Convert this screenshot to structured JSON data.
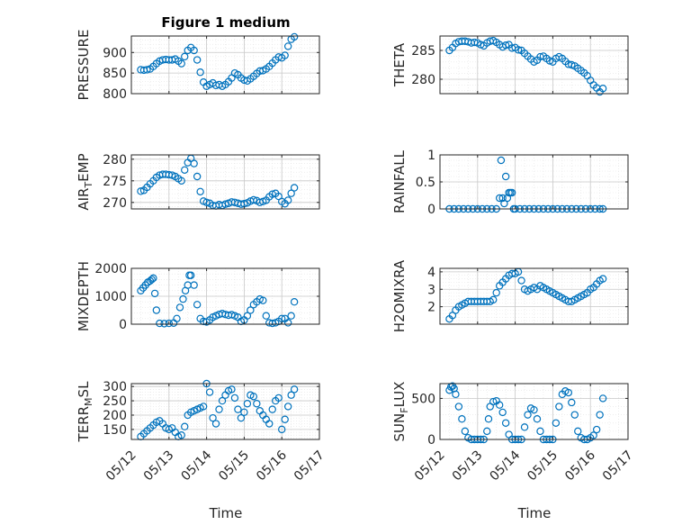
{
  "figure": {
    "title": "Figure 1 medium",
    "xlabel": "Time"
  },
  "colors": {
    "marker": "#0072BD",
    "axis": "#262626",
    "grid": "#c8c8c8",
    "minor_grid": "#e3e3e3"
  },
  "x_axis": {
    "ticks": [
      "05/12",
      "05/13",
      "05/14",
      "05/15",
      "05/16",
      "05/17"
    ],
    "range": [
      "05/12 00:00",
      "05/17 00:00"
    ]
  },
  "chart_data": [
    {
      "type": "scatter",
      "id": "pressure",
      "ylabel": {
        "main": "PRESSURE",
        "sub": ""
      },
      "ylim": [
        800,
        940
      ],
      "yticks": [
        800,
        850,
        900
      ],
      "ytick_labels": [
        "800",
        "850",
        "900"
      ],
      "grid": true,
      "x": [
        "05/12 06:00",
        "05/12 08:00",
        "05/12 10:00",
        "05/12 12:00",
        "05/12 14:00",
        "05/12 16:00",
        "05/12 18:00",
        "05/12 20:00",
        "05/12 22:00",
        "05/13 00:00",
        "05/13 02:00",
        "05/13 04:00",
        "05/13 06:00",
        "05/13 08:00",
        "05/13 10:00",
        "05/13 12:00",
        "05/13 14:00",
        "05/13 16:00",
        "05/13 18:00",
        "05/13 20:00",
        "05/13 22:00",
        "05/14 00:00",
        "05/14 02:00",
        "05/14 04:00",
        "05/14 06:00",
        "05/14 08:00",
        "05/14 10:00",
        "05/14 12:00",
        "05/14 14:00",
        "05/14 16:00",
        "05/14 18:00",
        "05/14 20:00",
        "05/14 22:00",
        "05/15 00:00",
        "05/15 02:00",
        "05/15 04:00",
        "05/15 06:00",
        "05/15 08:00",
        "05/15 10:00",
        "05/15 12:00",
        "05/15 14:00",
        "05/15 16:00",
        "05/15 18:00",
        "05/15 20:00",
        "05/15 22:00",
        "05/16 00:00",
        "05/16 02:00",
        "05/16 04:00",
        "05/16 06:00",
        "05/16 08:00"
      ],
      "y": [
        858,
        857,
        858,
        860,
        866,
        873,
        879,
        882,
        883,
        882,
        882,
        884,
        879,
        873,
        890,
        905,
        912,
        905,
        882,
        852,
        828,
        818,
        822,
        826,
        820,
        822,
        818,
        822,
        829,
        838,
        850,
        846,
        838,
        833,
        831,
        836,
        842,
        849,
        855,
        856,
        860,
        866,
        874,
        882,
        889,
        887,
        893,
        915,
        932,
        938
      ]
    },
    {
      "type": "scatter",
      "id": "theta",
      "ylabel": {
        "main": "THETA",
        "sub": ""
      },
      "ylim": [
        277.5,
        287.5
      ],
      "yticks": [
        280,
        285
      ],
      "ytick_labels": [
        "280",
        "285"
      ],
      "grid": true,
      "x": [
        "05/12 06:00",
        "05/12 08:00",
        "05/12 10:00",
        "05/12 12:00",
        "05/12 14:00",
        "05/12 16:00",
        "05/12 18:00",
        "05/12 20:00",
        "05/12 22:00",
        "05/13 00:00",
        "05/13 02:00",
        "05/13 04:00",
        "05/13 06:00",
        "05/13 08:00",
        "05/13 10:00",
        "05/13 12:00",
        "05/13 14:00",
        "05/13 16:00",
        "05/13 18:00",
        "05/13 20:00",
        "05/13 22:00",
        "05/14 00:00",
        "05/14 02:00",
        "05/14 04:00",
        "05/14 06:00",
        "05/14 08:00",
        "05/14 10:00",
        "05/14 12:00",
        "05/14 14:00",
        "05/14 16:00",
        "05/14 18:00",
        "05/14 20:00",
        "05/14 22:00",
        "05/15 00:00",
        "05/15 02:00",
        "05/15 04:00",
        "05/15 06:00",
        "05/15 08:00",
        "05/15 10:00",
        "05/15 12:00",
        "05/15 14:00",
        "05/15 16:00",
        "05/15 18:00",
        "05/15 20:00",
        "05/15 22:00",
        "05/16 00:00",
        "05/16 02:00",
        "05/16 04:00",
        "05/16 06:00",
        "05/16 08:00"
      ],
      "y": [
        285.0,
        285.5,
        286.2,
        286.5,
        286.6,
        286.6,
        286.5,
        286.3,
        286.4,
        286.3,
        286.0,
        285.8,
        286.3,
        286.6,
        286.7,
        286.4,
        286.0,
        285.6,
        285.9,
        286.0,
        285.4,
        285.5,
        285.1,
        285.0,
        284.5,
        284.0,
        283.5,
        283.0,
        283.3,
        283.9,
        284.0,
        283.6,
        283.2,
        283.0,
        283.6,
        283.9,
        283.6,
        283.1,
        282.6,
        282.5,
        282.3,
        281.9,
        281.5,
        281.1,
        280.6,
        279.8,
        279.0,
        278.5,
        277.8,
        278.4
      ]
    },
    {
      "type": "scatter",
      "id": "air_temp",
      "ylabel": {
        "main": "AIR",
        "sub": "T",
        "tail": "EMP"
      },
      "ylim": [
        268.5,
        281
      ],
      "yticks": [
        270,
        275,
        280
      ],
      "ytick_labels": [
        "270",
        "275",
        "280"
      ],
      "grid": true,
      "x": [
        "05/12 06:00",
        "05/12 08:00",
        "05/12 10:00",
        "05/12 12:00",
        "05/12 14:00",
        "05/12 16:00",
        "05/12 18:00",
        "05/12 20:00",
        "05/12 22:00",
        "05/13 00:00",
        "05/13 02:00",
        "05/13 04:00",
        "05/13 06:00",
        "05/13 08:00",
        "05/13 10:00",
        "05/13 12:00",
        "05/13 14:00",
        "05/13 16:00",
        "05/13 18:00",
        "05/13 20:00",
        "05/13 22:00",
        "05/14 00:00",
        "05/14 02:00",
        "05/14 04:00",
        "05/14 06:00",
        "05/14 08:00",
        "05/14 10:00",
        "05/14 12:00",
        "05/14 14:00",
        "05/14 16:00",
        "05/14 18:00",
        "05/14 20:00",
        "05/14 22:00",
        "05/15 00:00",
        "05/15 02:00",
        "05/15 04:00",
        "05/15 06:00",
        "05/15 08:00",
        "05/15 10:00",
        "05/15 12:00",
        "05/15 14:00",
        "05/15 16:00",
        "05/15 18:00",
        "05/15 20:00",
        "05/15 22:00",
        "05/16 00:00",
        "05/16 02:00",
        "05/16 04:00",
        "05/16 06:00",
        "05/16 08:00"
      ],
      "y": [
        272.6,
        272.8,
        273.5,
        274.3,
        275.0,
        275.8,
        276.3,
        276.5,
        276.5,
        276.4,
        276.3,
        276.0,
        275.5,
        275.0,
        277.5,
        279.2,
        280.2,
        279.0,
        276.0,
        272.5,
        270.3,
        270.0,
        269.8,
        269.3,
        269.2,
        269.5,
        269.3,
        269.6,
        269.8,
        270.1,
        270.0,
        269.8,
        269.6,
        269.7,
        269.9,
        270.3,
        270.6,
        270.4,
        270.0,
        270.2,
        270.5,
        271.3,
        271.9,
        272.1,
        271.4,
        270.2,
        269.7,
        270.5,
        272.1,
        273.4
      ]
    },
    {
      "type": "scatter",
      "id": "rainfall",
      "ylabel": {
        "main": "RAINFALL",
        "sub": ""
      },
      "ylim": [
        0,
        1
      ],
      "yticks": [
        0,
        0.5,
        1
      ],
      "ytick_labels": [
        "0",
        "0.5",
        "1"
      ],
      "grid": true,
      "x": [
        "05/12 06:00",
        "05/12 09:00",
        "05/12 12:00",
        "05/12 15:00",
        "05/12 18:00",
        "05/12 21:00",
        "05/13 00:00",
        "05/13 03:00",
        "05/13 06:00",
        "05/13 09:00",
        "05/13 12:00",
        "05/13 14:00",
        "05/13 15:00",
        "05/13 16:00",
        "05/13 17:00",
        "05/13 18:00",
        "05/13 19:00",
        "05/13 20:00",
        "05/13 21:00",
        "05/13 22:00",
        "05/13 23:00",
        "05/14 00:00",
        "05/14 03:00",
        "05/14 06:00",
        "05/14 09:00",
        "05/14 12:00",
        "05/14 15:00",
        "05/14 18:00",
        "05/14 21:00",
        "05/15 00:00",
        "05/15 03:00",
        "05/15 06:00",
        "05/15 09:00",
        "05/15 12:00",
        "05/15 15:00",
        "05/15 18:00",
        "05/15 21:00",
        "05/16 00:00",
        "05/16 03:00",
        "05/16 06:00",
        "05/16 08:00"
      ],
      "y": [
        0,
        0,
        0,
        0,
        0,
        0,
        0,
        0,
        0,
        0,
        0,
        0.2,
        0.9,
        0.2,
        0.1,
        0.6,
        0.2,
        0.3,
        0.3,
        0.3,
        0,
        0,
        0,
        0,
        0,
        0,
        0,
        0,
        0,
        0,
        0,
        0,
        0,
        0,
        0,
        0,
        0,
        0,
        0,
        0,
        0
      ]
    },
    {
      "type": "scatter",
      "id": "mixdepth",
      "ylabel": {
        "main": "MIXDEPTH",
        "sub": ""
      },
      "ylim": [
        0,
        2000
      ],
      "yticks": [
        0,
        1000,
        2000
      ],
      "ytick_labels": [
        "0",
        "1000",
        "2000"
      ],
      "grid": true,
      "x": [
        "05/12 06:00",
        "05/12 07:30",
        "05/12 09:00",
        "05/12 10:30",
        "05/12 12:00",
        "05/12 13:00",
        "05/12 14:00",
        "05/12 15:00",
        "05/12 16:00",
        "05/12 18:00",
        "05/12 21:00",
        "05/13 00:00",
        "05/13 03:00",
        "05/13 05:00",
        "05/13 07:00",
        "05/13 09:00",
        "05/13 10:30",
        "05/13 12:00",
        "05/13 13:00",
        "05/13 14:00",
        "05/13 16:00",
        "05/13 18:00",
        "05/13 20:00",
        "05/13 22:00",
        "05/14 00:00",
        "05/14 02:00",
        "05/14 04:00",
        "05/14 06:00",
        "05/14 08:00",
        "05/14 10:00",
        "05/14 12:00",
        "05/14 14:00",
        "05/14 16:00",
        "05/14 18:00",
        "05/14 20:00",
        "05/14 22:00",
        "05/15 00:00",
        "05/15 02:00",
        "05/15 04:00",
        "05/15 06:00",
        "05/15 08:00",
        "05/15 10:00",
        "05/15 12:00",
        "05/15 14:00",
        "05/15 16:00",
        "05/15 18:00",
        "05/15 20:00",
        "05/15 22:00",
        "05/16 00:00",
        "05/16 02:00",
        "05/16 04:00",
        "05/16 06:00",
        "05/16 08:00"
      ],
      "y": [
        1200,
        1300,
        1400,
        1500,
        1550,
        1600,
        1650,
        1100,
        500,
        30,
        20,
        30,
        40,
        200,
        600,
        900,
        1200,
        1400,
        1750,
        1750,
        1400,
        700,
        200,
        100,
        80,
        150,
        250,
        300,
        350,
        380,
        350,
        320,
        340,
        300,
        250,
        100,
        150,
        300,
        500,
        700,
        800,
        900,
        850,
        300,
        50,
        30,
        50,
        100,
        200,
        200,
        50,
        300,
        800
      ]
    },
    {
      "type": "scatter",
      "id": "h2omixra",
      "ylabel": {
        "main": "H2OMIXRA",
        "sub": ""
      },
      "ylim": [
        1,
        4.2
      ],
      "yticks": [
        2,
        3,
        4
      ],
      "ytick_labels": [
        "2",
        "3",
        "4"
      ],
      "grid": true,
      "x": [
        "05/12 06:00",
        "05/12 08:00",
        "05/12 10:00",
        "05/12 12:00",
        "05/12 14:00",
        "05/12 16:00",
        "05/12 18:00",
        "05/12 20:00",
        "05/12 22:00",
        "05/13 00:00",
        "05/13 02:00",
        "05/13 04:00",
        "05/13 06:00",
        "05/13 08:00",
        "05/13 10:00",
        "05/13 12:00",
        "05/13 14:00",
        "05/13 16:00",
        "05/13 18:00",
        "05/13 20:00",
        "05/13 22:00",
        "05/14 00:00",
        "05/14 02:00",
        "05/14 04:00",
        "05/14 06:00",
        "05/14 08:00",
        "05/14 10:00",
        "05/14 12:00",
        "05/14 14:00",
        "05/14 16:00",
        "05/14 18:00",
        "05/14 20:00",
        "05/14 22:00",
        "05/15 00:00",
        "05/15 02:00",
        "05/15 04:00",
        "05/15 06:00",
        "05/15 08:00",
        "05/15 10:00",
        "05/15 12:00",
        "05/15 14:00",
        "05/15 16:00",
        "05/15 18:00",
        "05/15 20:00",
        "05/15 22:00",
        "05/16 00:00",
        "05/16 02:00",
        "05/16 04:00",
        "05/16 06:00",
        "05/16 08:00"
      ],
      "y": [
        1.3,
        1.5,
        1.8,
        2.0,
        2.1,
        2.2,
        2.3,
        2.3,
        2.3,
        2.3,
        2.3,
        2.3,
        2.3,
        2.3,
        2.4,
        2.8,
        3.2,
        3.4,
        3.6,
        3.8,
        3.9,
        3.9,
        4.0,
        3.5,
        3.0,
        2.9,
        3.0,
        3.1,
        3.0,
        3.2,
        3.1,
        3.0,
        2.9,
        2.8,
        2.7,
        2.6,
        2.5,
        2.4,
        2.3,
        2.3,
        2.4,
        2.5,
        2.6,
        2.7,
        2.8,
        3.0,
        3.1,
        3.3,
        3.5,
        3.6
      ]
    },
    {
      "type": "scatter",
      "id": "terr_msl",
      "ylabel": {
        "main": "TERR",
        "sub": "M",
        "tail": "SL"
      },
      "ylim": [
        115,
        310
      ],
      "yticks": [
        150,
        200,
        250,
        300
      ],
      "ytick_labels": [
        "150",
        "200",
        "250",
        "300"
      ],
      "grid": true,
      "x": [
        "05/12 06:00",
        "05/12 08:00",
        "05/12 10:00",
        "05/12 12:00",
        "05/12 14:00",
        "05/12 16:00",
        "05/12 18:00",
        "05/12 20:00",
        "05/12 22:00",
        "05/13 00:00",
        "05/13 02:00",
        "05/13 04:00",
        "05/13 06:00",
        "05/13 08:00",
        "05/13 10:00",
        "05/13 12:00",
        "05/13 14:00",
        "05/13 16:00",
        "05/13 18:00",
        "05/13 20:00",
        "05/13 22:00",
        "05/14 00:00",
        "05/14 02:00",
        "05/14 04:00",
        "05/14 06:00",
        "05/14 08:00",
        "05/14 10:00",
        "05/14 12:00",
        "05/14 14:00",
        "05/14 16:00",
        "05/14 18:00",
        "05/14 20:00",
        "05/14 22:00",
        "05/15 00:00",
        "05/15 02:00",
        "05/15 04:00",
        "05/15 06:00",
        "05/15 08:00",
        "05/15 10:00",
        "05/15 12:00",
        "05/15 14:00",
        "05/15 16:00",
        "05/15 18:00",
        "05/15 20:00",
        "05/15 22:00",
        "05/16 00:00",
        "05/16 02:00",
        "05/16 04:00",
        "05/16 06:00",
        "05/16 08:00"
      ],
      "y": [
        125,
        135,
        145,
        155,
        165,
        175,
        180,
        170,
        155,
        150,
        155,
        140,
        125,
        130,
        160,
        200,
        210,
        215,
        220,
        225,
        230,
        310,
        280,
        190,
        170,
        220,
        250,
        270,
        285,
        290,
        260,
        220,
        190,
        210,
        240,
        270,
        265,
        240,
        215,
        200,
        185,
        170,
        220,
        250,
        260,
        150,
        185,
        230,
        270,
        290
      ]
    },
    {
      "type": "scatter",
      "id": "sun_flux",
      "ylabel": {
        "main": "SUN",
        "sub": "F",
        "tail": "LUX"
      },
      "ylim": [
        0,
        680
      ],
      "yticks": [
        0,
        500
      ],
      "ytick_labels": [
        "0",
        "500"
      ],
      "grid": true,
      "x": [
        "05/12 06:00",
        "05/12 07:00",
        "05/12 08:00",
        "05/12 09:00",
        "05/12 10:00",
        "05/12 12:00",
        "05/12 14:00",
        "05/12 16:00",
        "05/12 18:00",
        "05/12 20:00",
        "05/12 22:00",
        "05/13 00:00",
        "05/13 02:00",
        "05/13 04:00",
        "05/13 06:00",
        "05/13 07:00",
        "05/13 08:00",
        "05/13 10:00",
        "05/13 12:00",
        "05/13 14:00",
        "05/13 16:00",
        "05/13 18:00",
        "05/13 20:00",
        "05/13 22:00",
        "05/14 00:00",
        "05/14 02:00",
        "05/14 04:00",
        "05/14 06:00",
        "05/14 08:00",
        "05/14 10:00",
        "05/14 12:00",
        "05/14 14:00",
        "05/14 16:00",
        "05/14 18:00",
        "05/14 20:00",
        "05/14 22:00",
        "05/15 00:00",
        "05/15 02:00",
        "05/15 04:00",
        "05/15 06:00",
        "05/15 08:00",
        "05/15 10:00",
        "05/15 12:00",
        "05/15 14:00",
        "05/15 16:00",
        "05/15 18:00",
        "05/15 20:00",
        "05/15 22:00",
        "05/16 00:00",
        "05/16 02:00",
        "05/16 04:00",
        "05/16 06:00",
        "05/16 08:00"
      ],
      "y": [
        600,
        640,
        650,
        620,
        550,
        400,
        250,
        100,
        20,
        0,
        0,
        0,
        0,
        0,
        100,
        250,
        400,
        460,
        470,
        420,
        330,
        200,
        60,
        0,
        0,
        0,
        0,
        150,
        300,
        380,
        360,
        250,
        100,
        0,
        0,
        0,
        0,
        200,
        400,
        550,
        590,
        570,
        450,
        300,
        100,
        20,
        0,
        0,
        20,
        50,
        120,
        300,
        500
      ]
    }
  ]
}
